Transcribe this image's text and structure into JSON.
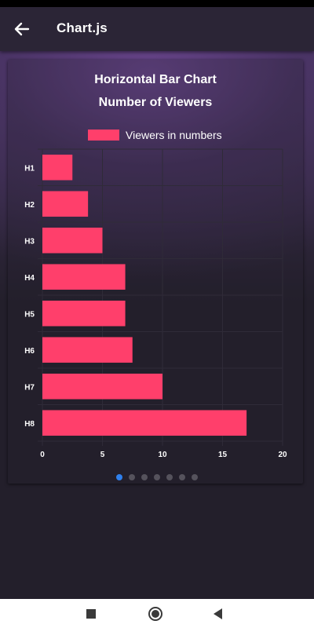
{
  "app_bar": {
    "title": "Chart.js",
    "back_icon": "arrow-left-icon"
  },
  "chart_data": {
    "type": "bar",
    "orientation": "horizontal",
    "title": [
      "Horizontal Bar Chart",
      "Number of Viewers"
    ],
    "categories": [
      "H1",
      "H2",
      "H3",
      "H4",
      "H5",
      "H6",
      "H7",
      "H8"
    ],
    "series": [
      {
        "name": "Viewers in numbers",
        "values": [
          2.5,
          3.8,
          5,
          6.9,
          6.9,
          7.5,
          10,
          17
        ]
      }
    ],
    "xlim": [
      0,
      20
    ],
    "x_ticks": [
      "0",
      "5",
      "10",
      "15",
      "20"
    ],
    "grid": true,
    "legend_position": "top",
    "bar_color": "#ff3f6b",
    "text_color": "#ffffff"
  },
  "page_indicator": {
    "count": 7,
    "active_index": 0,
    "active_color": "#2f80ed"
  },
  "nav_bar": {
    "buttons": [
      "square-stop-icon",
      "circle-home-icon",
      "triangle-back-icon"
    ]
  }
}
